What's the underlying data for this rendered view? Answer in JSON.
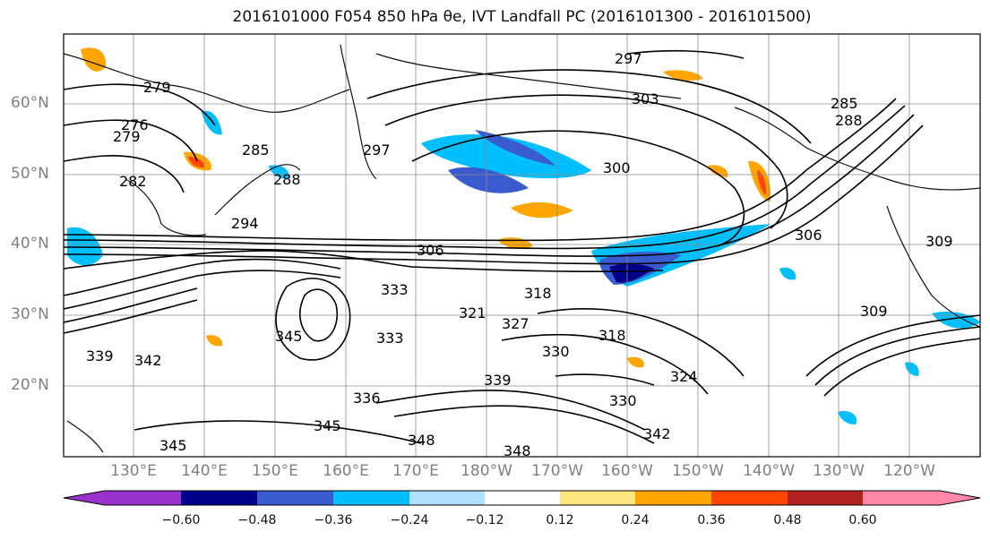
{
  "title": "2016101000 F054 850 hPa θe, IVT Landfall PC (2016101300 - 2016101500)",
  "map": {
    "lat_labels": [
      "60°N",
      "50°N",
      "40°N",
      "30°N",
      "20°N"
    ],
    "lon_labels": [
      "130°E",
      "140°E",
      "150°E",
      "160°E",
      "170°E",
      "180°W",
      "170°W",
      "160°W",
      "150°W",
      "140°W",
      "130°W",
      "120°W"
    ],
    "contour_labels": [
      "297",
      "279",
      "276",
      "279",
      "282",
      "285",
      "288",
      "294",
      "303",
      "300",
      "306",
      "306",
      "309",
      "309",
      "318",
      "321",
      "327",
      "330",
      "333",
      "333",
      "336",
      "339",
      "339",
      "342",
      "345",
      "345",
      "345",
      "348",
      "348",
      "330",
      "324",
      "318",
      "342",
      "285",
      "288",
      "297"
    ]
  },
  "colorbar": {
    "ticks": [
      "−0.60",
      "−0.48",
      "−0.36",
      "−0.24",
      "−0.12",
      "0.12",
      "0.24",
      "0.36",
      "0.48",
      "0.60"
    ],
    "colors": [
      "#9932cc",
      "#00008b",
      "#3a5bcd",
      "#00bfff",
      "#b0e0ff",
      "#ffffff",
      "#ffe680",
      "#ffa500",
      "#ff4500",
      "#b22222",
      "#ff88aa"
    ]
  }
}
